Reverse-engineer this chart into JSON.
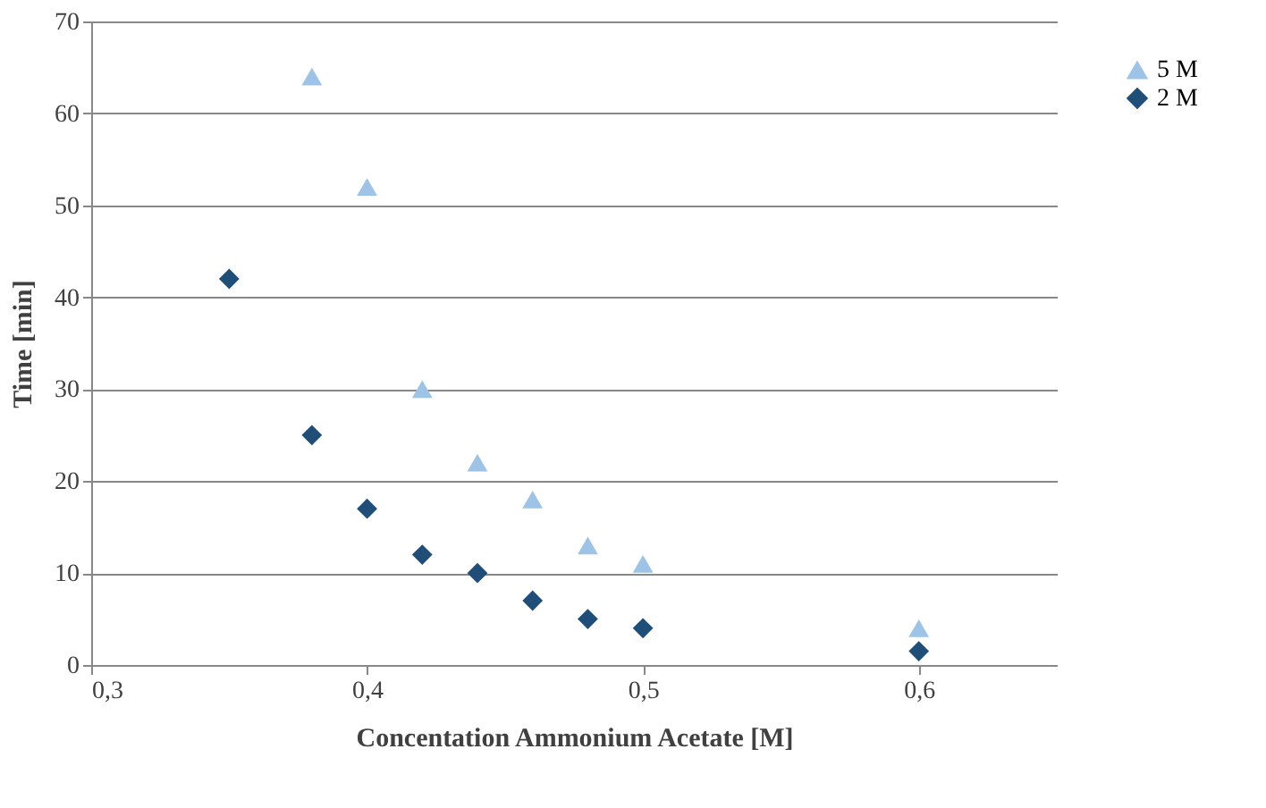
{
  "chart_data": {
    "type": "scatter",
    "xlabel": "Concentation Ammonium Acetate [M]",
    "ylabel": "Time [min]",
    "xlim": [
      0.3,
      0.65
    ],
    "xticks": [
      {
        "value": 0.3,
        "label": "0,3"
      },
      {
        "value": 0.4,
        "label": "0,4"
      },
      {
        "value": 0.5,
        "label": "0,5"
      },
      {
        "value": 0.6,
        "label": "0,6"
      }
    ],
    "ylim": [
      0,
      70
    ],
    "yticks": [
      0,
      10,
      20,
      30,
      40,
      50,
      60,
      70
    ],
    "grid": "y",
    "legend": "right",
    "series": [
      {
        "name": "5 M",
        "color": "#9dc3e6",
        "marker": "triangle",
        "x": [
          0.38,
          0.4,
          0.42,
          0.44,
          0.46,
          0.48,
          0.5,
          0.6
        ],
        "values": [
          64,
          52,
          30,
          22,
          18,
          13,
          11,
          4
        ]
      },
      {
        "name": "2 M",
        "color": "#1f4e79",
        "marker": "diamond",
        "x": [
          0.35,
          0.38,
          0.4,
          0.42,
          0.44,
          0.46,
          0.48,
          0.5,
          0.6
        ],
        "values": [
          42,
          25,
          17,
          12,
          10,
          7,
          5,
          4,
          1.5
        ]
      }
    ]
  }
}
